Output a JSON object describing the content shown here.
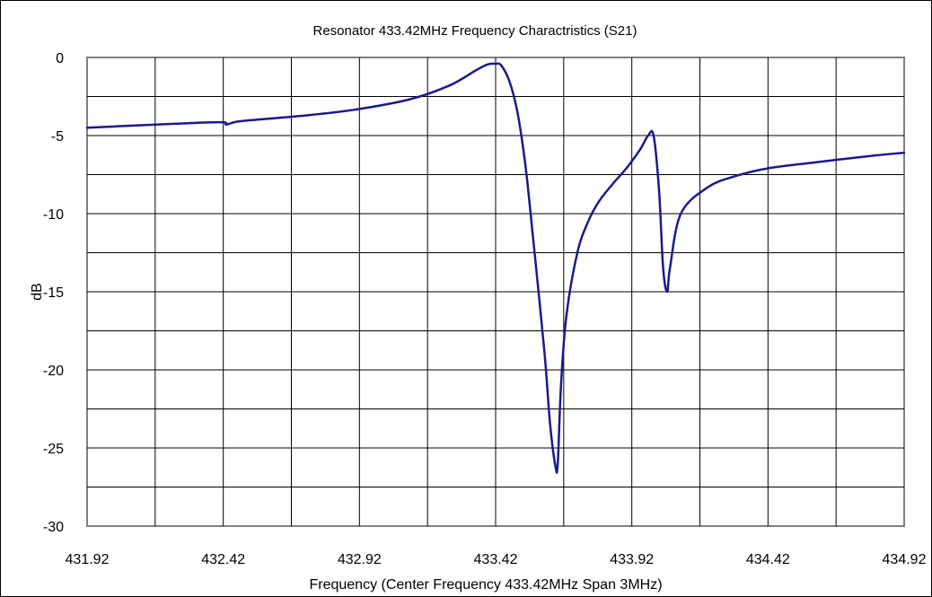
{
  "chart_data": {
    "type": "line",
    "title": "Resonator 433.42MHz Frequency Charactristics (S21)",
    "xlabel": "Frequency (Center Frequency 433.42MHz Span 3MHz)",
    "ylabel": "dB",
    "xlim": [
      431.92,
      434.92
    ],
    "ylim": [
      -30,
      0
    ],
    "x_tick_labels": [
      "431.92",
      "432.42",
      "432.92",
      "433.42",
      "433.92",
      "434.42",
      "434.92"
    ],
    "y_tick_labels": [
      "0",
      "-5",
      "-10",
      "-15",
      "-20",
      "-25",
      "-30"
    ],
    "grid": true,
    "legend": "none",
    "series": [
      {
        "color": "#1a1a8c",
        "x": [
          431.92,
          432.1,
          432.3,
          432.42,
          432.43,
          432.46,
          432.5,
          432.7,
          432.9,
          433.1,
          433.25,
          433.35,
          433.39,
          433.42,
          433.44,
          433.47,
          433.5,
          433.53,
          433.56,
          433.6,
          433.62,
          433.64,
          433.648,
          433.66,
          433.68,
          433.72,
          433.76,
          433.8,
          433.85,
          433.9,
          433.95,
          433.98,
          434.0,
          434.02,
          434.035,
          434.05,
          434.06,
          434.1,
          434.2,
          434.3,
          434.42,
          434.6,
          434.8,
          434.92
        ],
        "y": [
          -4.5,
          -4.35,
          -4.2,
          -4.15,
          -4.3,
          -4.15,
          -4.05,
          -3.75,
          -3.35,
          -2.7,
          -1.8,
          -0.8,
          -0.45,
          -0.4,
          -0.5,
          -1.5,
          -3.5,
          -7.0,
          -12.0,
          -19.0,
          -23.5,
          -26.2,
          -26.0,
          -21.0,
          -16.5,
          -12.5,
          -10.5,
          -9.2,
          -8.1,
          -7.1,
          -5.9,
          -5.0,
          -5.0,
          -8.5,
          -13.5,
          -15.0,
          -13.5,
          -10.0,
          -8.3,
          -7.6,
          -7.1,
          -6.7,
          -6.3,
          -6.1
        ]
      }
    ]
  }
}
